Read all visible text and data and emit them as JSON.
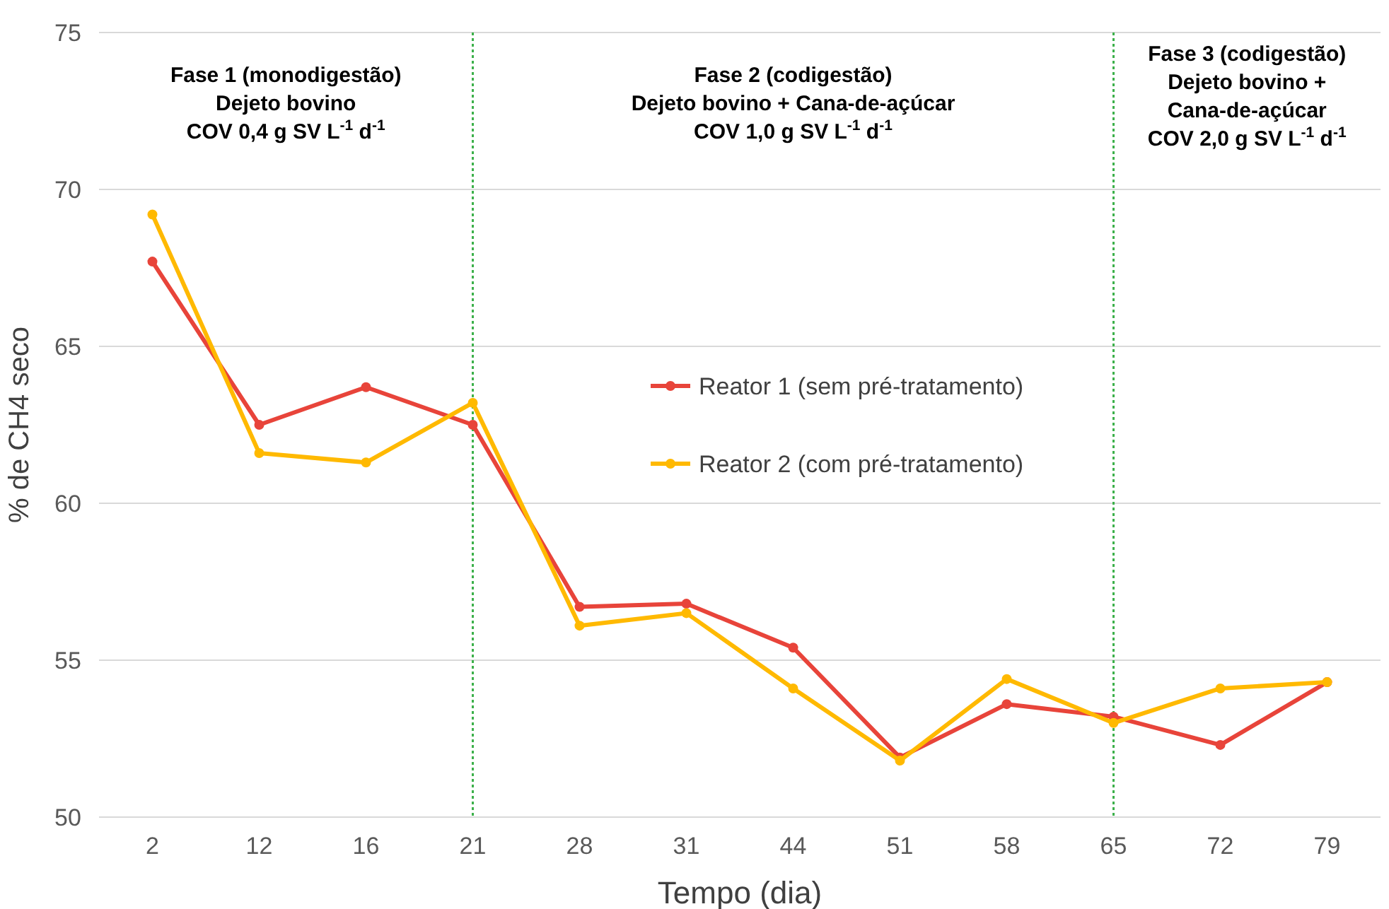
{
  "chart_data": {
    "type": "line",
    "xlabel": "Tempo (dia)",
    "ylabel": "% de CH4 seco",
    "categories": [
      "2",
      "12",
      "16",
      "21",
      "28",
      "31",
      "44",
      "51",
      "58",
      "65",
      "72",
      "79"
    ],
    "series": [
      {
        "name": "Reator 1 (sem pré-tratamento)",
        "color": "#e8443a",
        "values": [
          67.7,
          62.5,
          63.7,
          62.5,
          56.7,
          56.8,
          55.4,
          51.9,
          53.6,
          53.2,
          52.3,
          54.3
        ]
      },
      {
        "name": "Reator 2 (com pré-tratamento)",
        "color": "#ffb900",
        "values": [
          69.2,
          61.6,
          61.3,
          63.2,
          56.1,
          56.5,
          54.1,
          51.8,
          54.4,
          53.0,
          54.1,
          54.3
        ]
      }
    ],
    "ylim": [
      50,
      75
    ],
    "yticks": [
      50,
      55,
      60,
      65,
      70,
      75
    ],
    "grid": "y",
    "legend": "center",
    "marker": "circle",
    "line_style": "solid",
    "ref_lines": [
      {
        "axis": "x",
        "value": "21",
        "color": "#3cb04a",
        "line_style": "dotted"
      },
      {
        "axis": "x",
        "value": "65",
        "color": "#3cb04a",
        "line_style": "dotted"
      }
    ],
    "annotations": [
      "Fase 1 (monodigestão)\nDejeto bovino\nCOV 0,4 g SV L$^{-1}$ d$^{-1}$",
      "Fase 2 (codigestão)\nDejeto bovino + Cana-de-açúcar\nCOV 1,0 g SV L$^{-1}$ d$^{-1}$",
      "Fase 3 (codigestão)\nDejeto bovino +\nCana-de-açúcar\nCOV 2,0 g SV L$^{-1}$ d$^{-1}$"
    ]
  }
}
